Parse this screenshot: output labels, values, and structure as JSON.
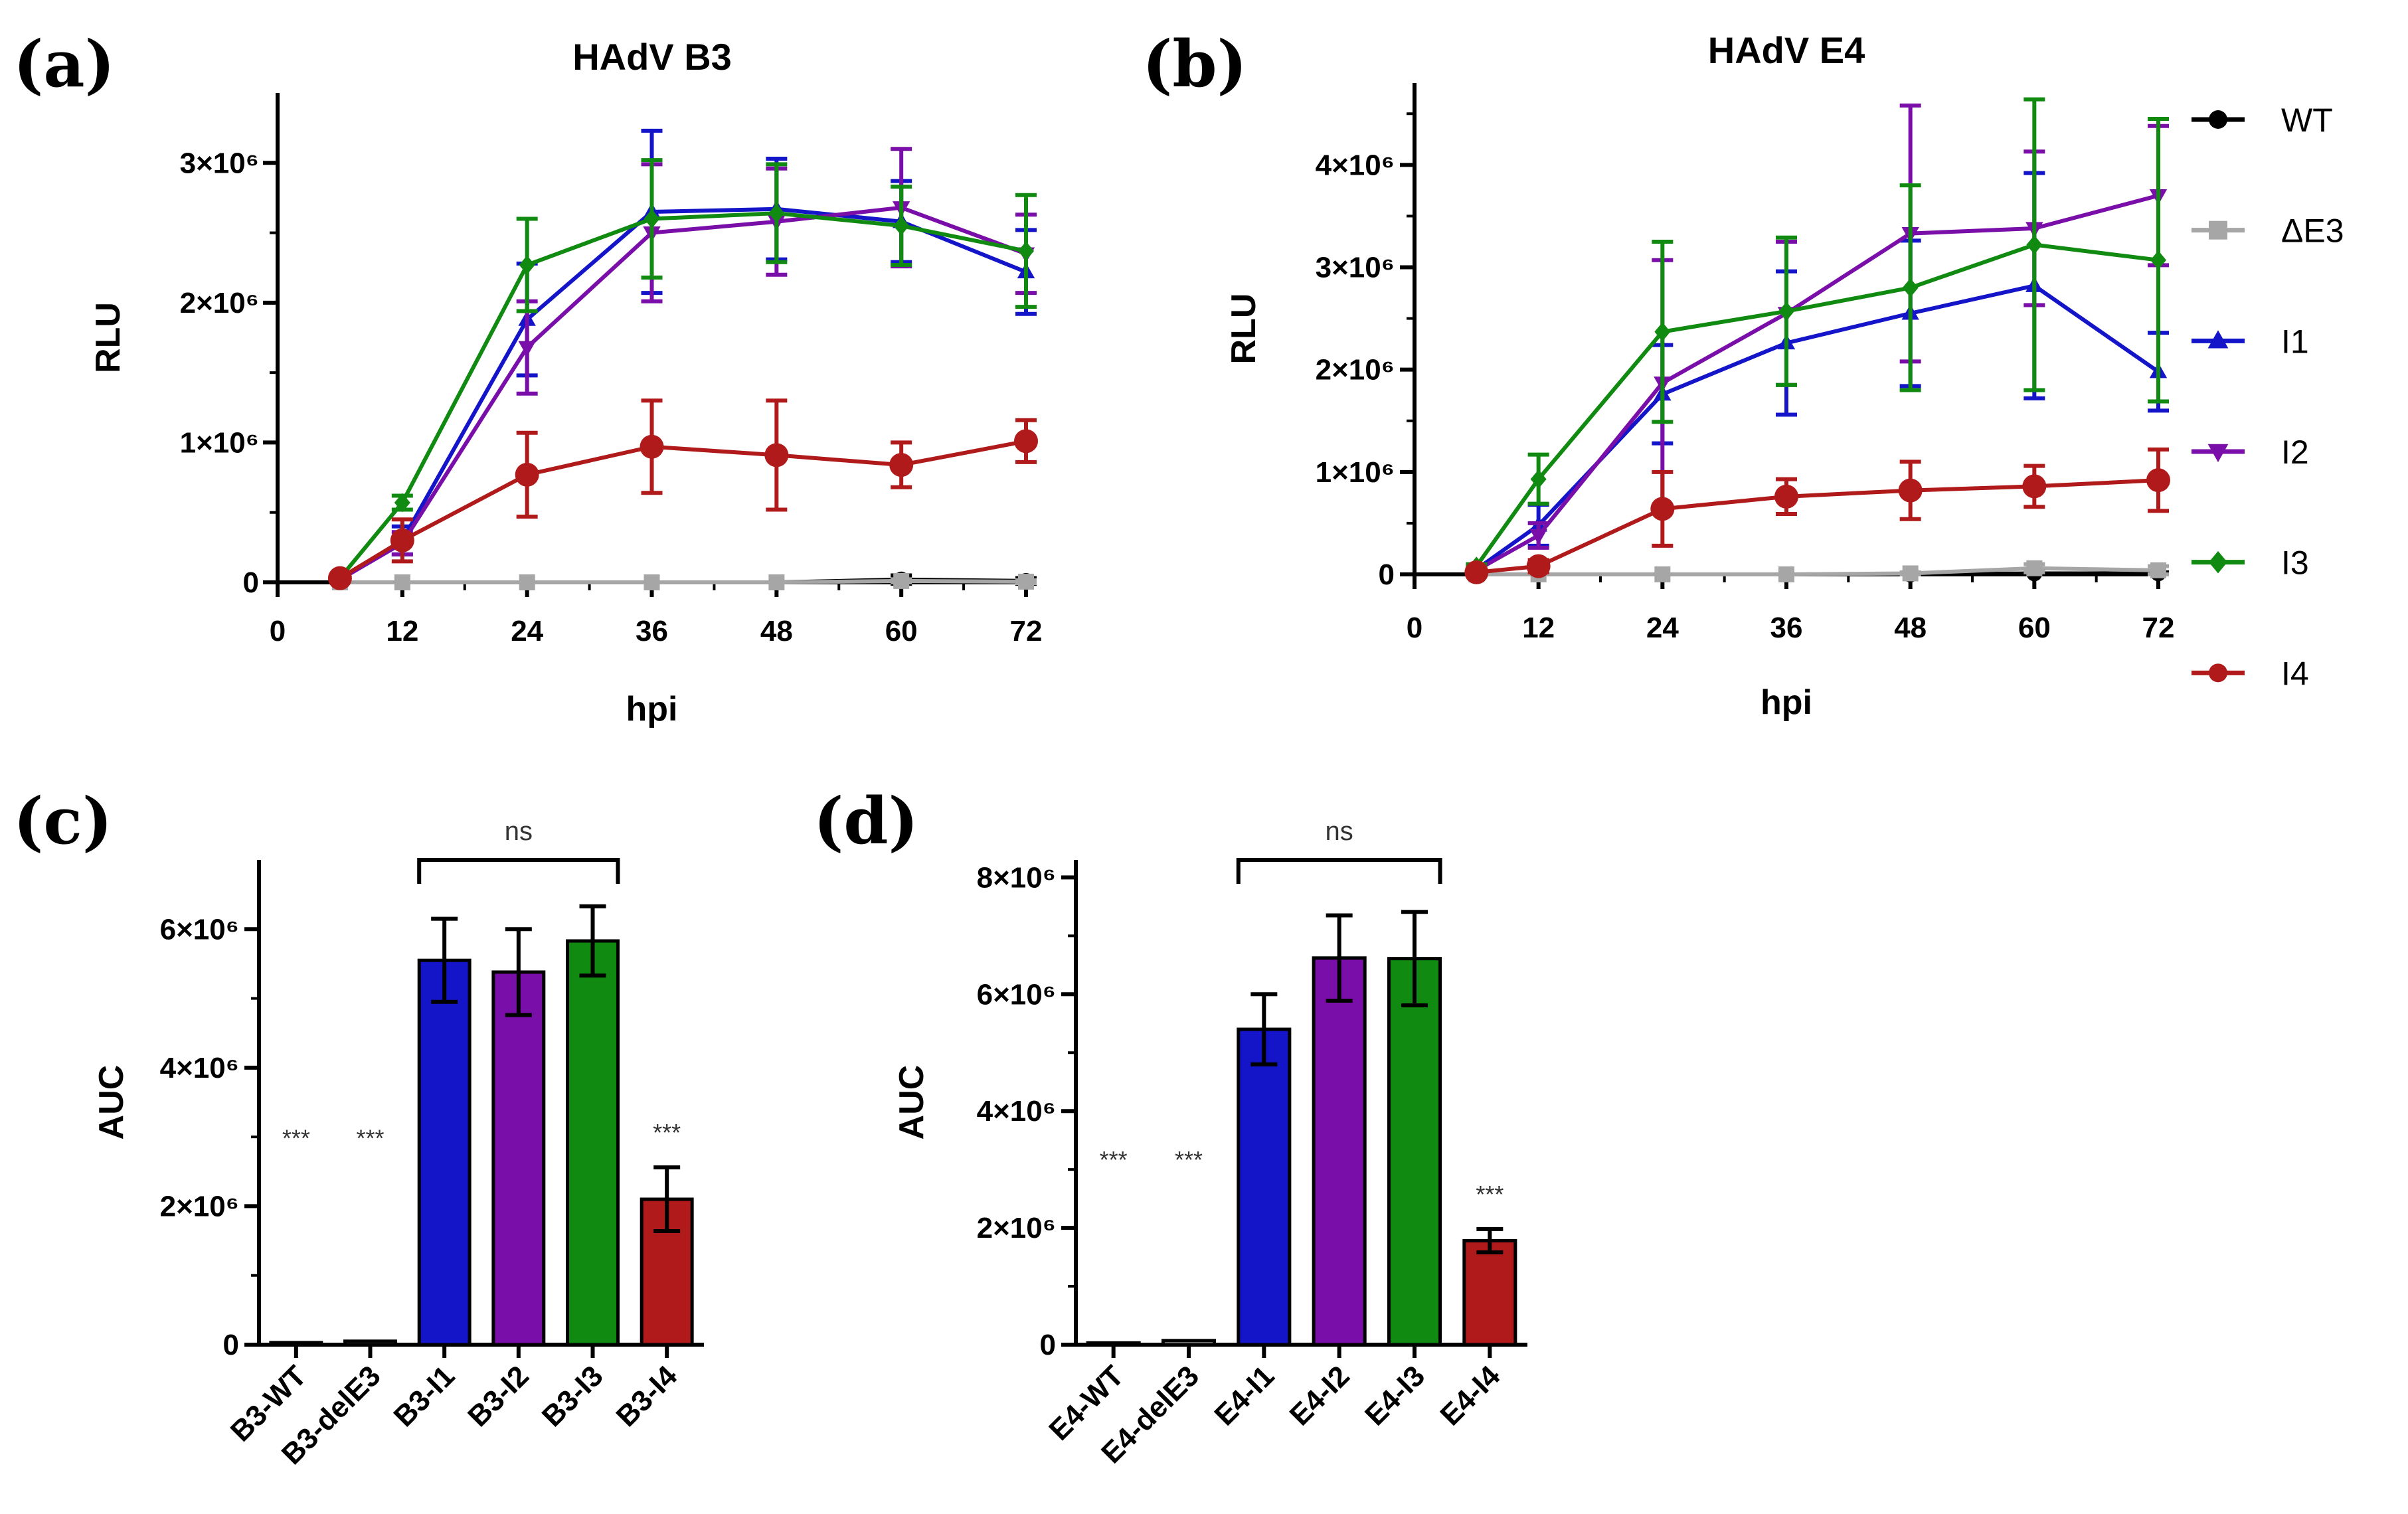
{
  "chart_data": [
    {
      "panel": "(a)",
      "type": "line",
      "title": "HAdV B3",
      "xlabel": "hpi",
      "ylabel": "RLU",
      "xlim": [
        0,
        72
      ],
      "ylim": [
        0,
        3500000
      ],
      "xticks": [
        "0",
        "12",
        "24",
        "36",
        "48",
        "60",
        "72"
      ],
      "yticks": [
        "0",
        "1×10⁶",
        "2×10⁶",
        "3×10⁶"
      ],
      "x": [
        6,
        12,
        24,
        36,
        48,
        60,
        72
      ],
      "series": [
        {
          "name": "WT",
          "color": "#000000",
          "marker": "circle",
          "values": [
            0,
            0,
            0,
            0,
            0,
            20000,
            10000
          ],
          "errors": [
            0,
            0,
            0,
            0,
            0,
            30000,
            20000
          ]
        },
        {
          "name": "ΔE3",
          "color": "#a6a6a6",
          "marker": "square",
          "values": [
            0,
            0,
            0,
            0,
            0,
            10000,
            5000
          ],
          "errors": [
            0,
            0,
            0,
            0,
            0,
            10000,
            10000
          ]
        },
        {
          "name": "I1",
          "color": "#1414c8",
          "marker": "triangle-up",
          "values": [
            20000,
            300000,
            1880000,
            2650000,
            2670000,
            2580000,
            2220000
          ],
          "errors": [
            10000,
            100000,
            400000,
            580000,
            360000,
            290000,
            300000
          ]
        },
        {
          "name": "I2",
          "color": "#7a0ea8",
          "marker": "triangle-down",
          "values": [
            20000,
            280000,
            1680000,
            2500000,
            2580000,
            2680000,
            2350000
          ],
          "errors": [
            10000,
            80000,
            330000,
            490000,
            380000,
            420000,
            280000
          ]
        },
        {
          "name": "I3",
          "color": "#118a11",
          "marker": "diamond",
          "values": [
            30000,
            570000,
            2270000,
            2600000,
            2640000,
            2550000,
            2370000
          ],
          "errors": [
            10000,
            50000,
            330000,
            420000,
            350000,
            280000,
            400000
          ]
        },
        {
          "name": "I4",
          "color": "#b01a1a",
          "marker": "circle",
          "values": [
            30000,
            300000,
            770000,
            970000,
            910000,
            840000,
            1010000
          ],
          "errors": [
            10000,
            150000,
            300000,
            330000,
            390000,
            160000,
            150000
          ]
        }
      ]
    },
    {
      "panel": "(b)",
      "type": "line",
      "title": "HAdV E4",
      "xlabel": "hpi",
      "ylabel": "RLU",
      "xlim": [
        0,
        72
      ],
      "ylim": [
        0,
        4800000
      ],
      "xticks": [
        "0",
        "12",
        "24",
        "36",
        "48",
        "60",
        "72"
      ],
      "yticks": [
        "0",
        "1×10⁶",
        "2×10⁶",
        "3×10⁶",
        "4×10⁶"
      ],
      "x": [
        6,
        12,
        24,
        36,
        48,
        60,
        72
      ],
      "series": [
        {
          "name": "WT",
          "color": "#000000",
          "marker": "circle",
          "values": [
            0,
            0,
            0,
            0,
            0,
            10000,
            10000
          ],
          "errors": [
            0,
            0,
            0,
            0,
            0,
            10000,
            10000
          ]
        },
        {
          "name": "ΔE3",
          "color": "#a6a6a6",
          "marker": "square",
          "values": [
            0,
            0,
            0,
            0,
            10000,
            60000,
            40000
          ],
          "errors": [
            0,
            0,
            0,
            0,
            10000,
            40000,
            40000
          ]
        },
        {
          "name": "I1",
          "color": "#1414c8",
          "marker": "triangle-up",
          "values": [
            50000,
            480000,
            1760000,
            2260000,
            2550000,
            2820000,
            1980000
          ],
          "errors": [
            10000,
            200000,
            480000,
            700000,
            710000,
            1100000,
            380000
          ]
        },
        {
          "name": "I2",
          "color": "#7a0ea8",
          "marker": "triangle-down",
          "values": [
            40000,
            380000,
            1870000,
            2550000,
            3330000,
            3380000,
            3700000
          ],
          "errors": [
            10000,
            120000,
            1200000,
            700000,
            1250000,
            750000,
            680000
          ]
        },
        {
          "name": "I3",
          "color": "#118a11",
          "marker": "diamond",
          "values": [
            80000,
            930000,
            2370000,
            2570000,
            2800000,
            3220000,
            3070000
          ],
          "errors": [
            20000,
            240000,
            880000,
            720000,
            1000000,
            1420000,
            1380000
          ]
        },
        {
          "name": "I4",
          "color": "#b01a1a",
          "marker": "circle",
          "values": [
            20000,
            80000,
            640000,
            760000,
            820000,
            860000,
            920000
          ],
          "errors": [
            10000,
            60000,
            360000,
            170000,
            280000,
            200000,
            300000
          ]
        }
      ]
    },
    {
      "panel": "(c)",
      "type": "bar",
      "xlabel": "",
      "ylabel": "AUC",
      "ylim": [
        0,
        7000000
      ],
      "yticks": [
        "0",
        "2×10⁶",
        "4×10⁶",
        "6×10⁶"
      ],
      "categories": [
        "B3-WT",
        "B3-delE3",
        "B3-I1",
        "B3-I2",
        "B3-I3",
        "B3-I4"
      ],
      "values": [
        30000,
        50000,
        5550000,
        5380000,
        5830000,
        2100000
      ],
      "errors": [
        5000,
        10000,
        600000,
        620000,
        500000,
        460000
      ],
      "colors": [
        "#000000",
        "#a6a6a6",
        "#1414c8",
        "#7a0ea8",
        "#118a11",
        "#b01a1a"
      ],
      "significance": [
        "***",
        "***",
        "",
        "",
        "",
        "***"
      ],
      "bracket_label": "ns"
    },
    {
      "panel": "(d)",
      "type": "bar",
      "xlabel": "",
      "ylabel": "AUC",
      "ylim": [
        0,
        8300000
      ],
      "yticks": [
        "0",
        "2×10⁶",
        "4×10⁶",
        "6×10⁶",
        "8×10⁶"
      ],
      "categories": [
        "E4-WT",
        "E4-delE3",
        "E4-I1",
        "E4-I2",
        "E4-I3",
        "E4-I4"
      ],
      "values": [
        30000,
        70000,
        5400000,
        6620000,
        6610000,
        1780000
      ],
      "errors": [
        5000,
        10000,
        600000,
        730000,
        800000,
        200000
      ],
      "colors": [
        "#000000",
        "#a6a6a6",
        "#1414c8",
        "#7a0ea8",
        "#118a11",
        "#b01a1a"
      ],
      "significance": [
        "***",
        "***",
        "",
        "",
        "",
        "***"
      ],
      "bracket_label": "ns"
    }
  ],
  "legend": {
    "placement": "right",
    "entries": [
      {
        "name": "WT",
        "color": "#000000",
        "marker": "circle"
      },
      {
        "name": "ΔE3",
        "color": "#a6a6a6",
        "marker": "square"
      },
      {
        "name": "I1",
        "color": "#1414c8",
        "marker": "triangle-up"
      },
      {
        "name": "I2",
        "color": "#7a0ea8",
        "marker": "triangle-down"
      },
      {
        "name": "I3",
        "color": "#118a11",
        "marker": "diamond"
      },
      {
        "name": "I4",
        "color": "#b01a1a",
        "marker": "circle"
      }
    ]
  }
}
